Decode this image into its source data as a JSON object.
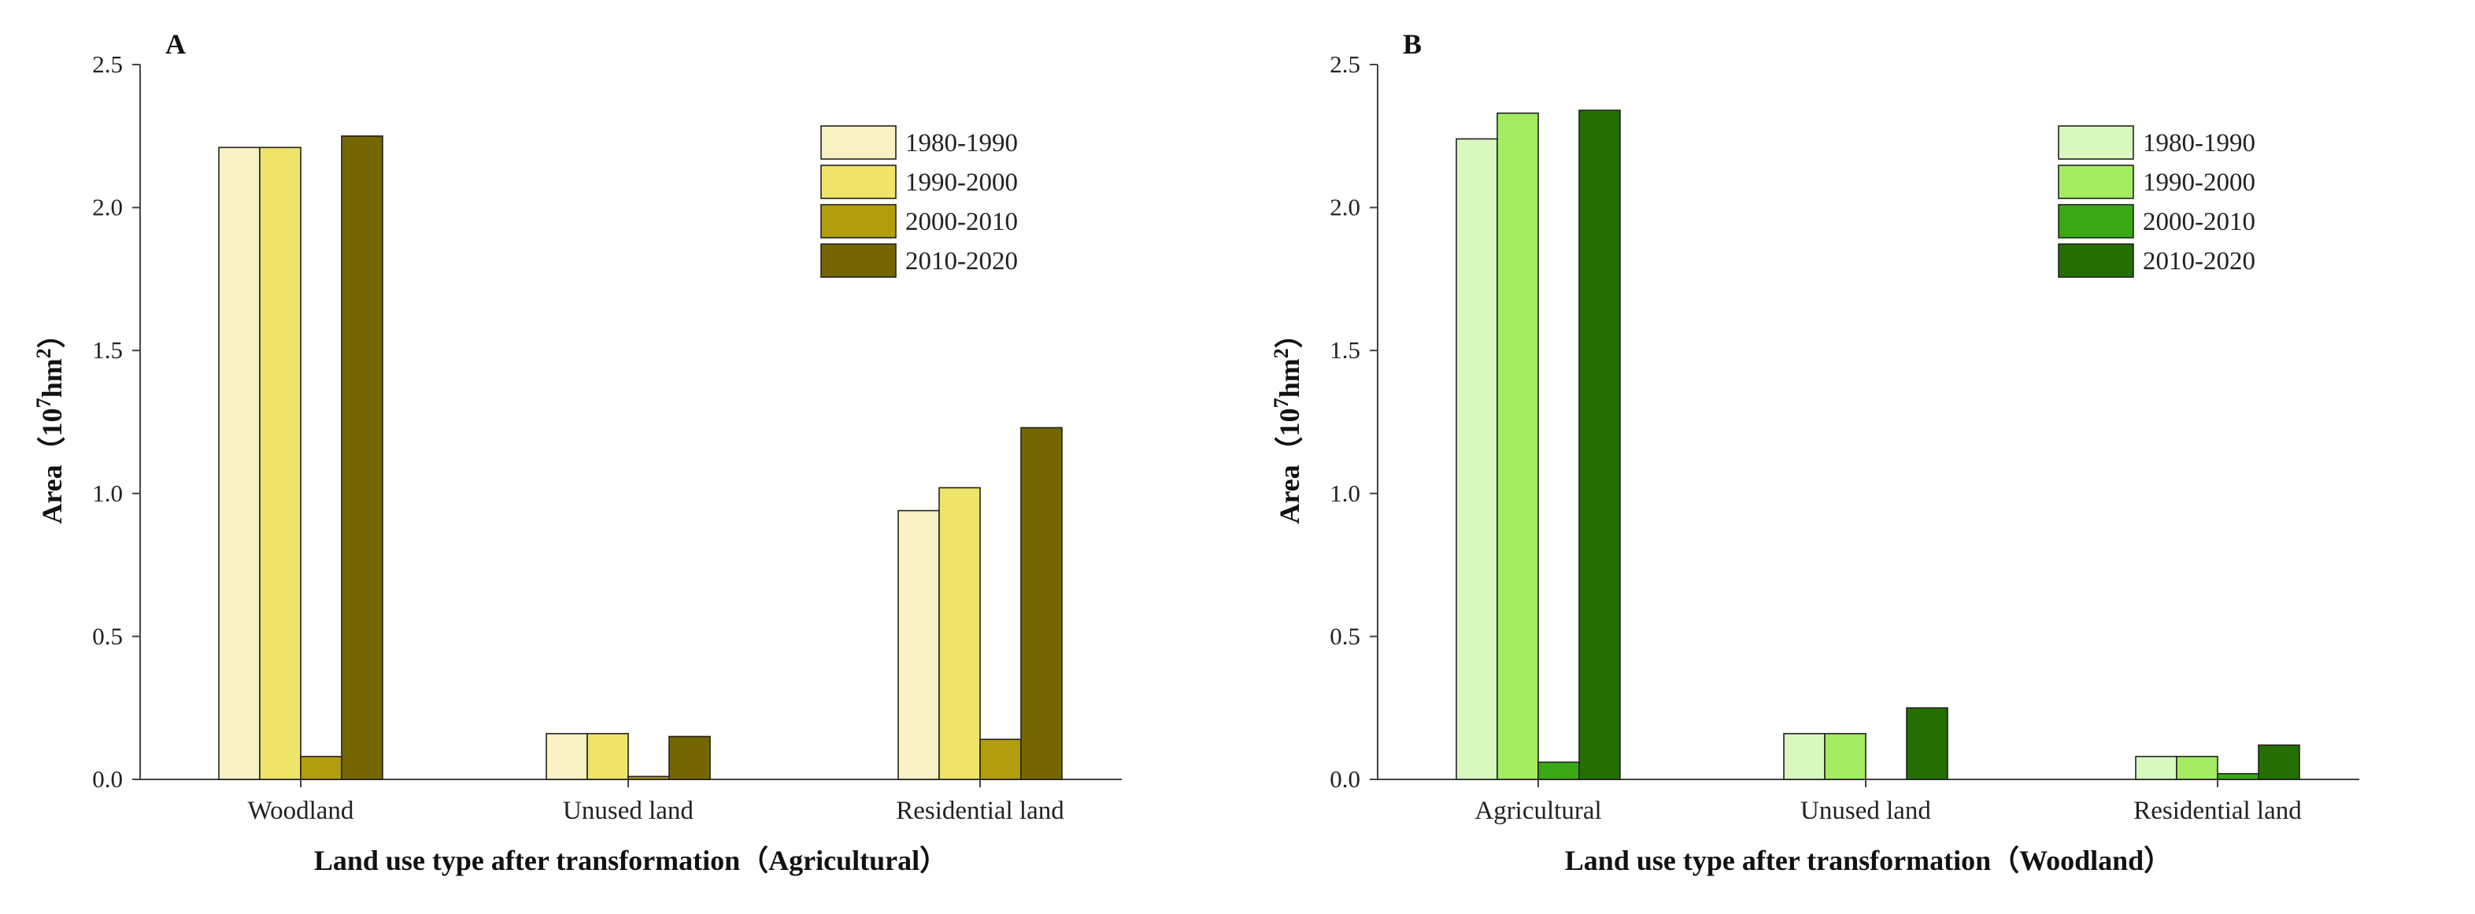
{
  "chart_data": [
    {
      "type": "bar",
      "panel_label": "A",
      "categories": [
        "Woodland",
        "Unused land",
        "Residential land"
      ],
      "series": [
        {
          "name": "1980-1990",
          "color": "#f7f1c3",
          "values": [
            2.21,
            0.16,
            0.94
          ]
        },
        {
          "name": "1990-2000",
          "color": "#efe46a",
          "values": [
            2.21,
            0.16,
            1.02
          ]
        },
        {
          "name": "2000-2010",
          "color": "#b19d0d",
          "values": [
            0.08,
            0.01,
            0.14
          ]
        },
        {
          "name": "2010-2020",
          "color": "#746700",
          "values": [
            2.25,
            0.15,
            1.23
          ]
        }
      ],
      "xlabel": "Land use type after transformation（Agricultural）",
      "ylabel_prefix": "Area（10",
      "ylabel_exp1": "7",
      "ylabel_mid": "hm",
      "ylabel_exp2": "2",
      "ylabel_suffix": "）",
      "ylim": [
        0,
        2.5
      ],
      "yticks": [
        "0.0",
        "0.5",
        "1.0",
        "1.5",
        "2.0",
        "2.5"
      ],
      "legend_position": "top-right"
    },
    {
      "type": "bar",
      "panel_label": "B",
      "categories": [
        "Agricultural",
        "Unused land",
        "Residential land"
      ],
      "series": [
        {
          "name": "1980-1990",
          "color": "#d9f8c0",
          "values": [
            2.24,
            0.16,
            0.08
          ]
        },
        {
          "name": "1990-2000",
          "color": "#a4ec62",
          "values": [
            2.33,
            0.16,
            0.08
          ]
        },
        {
          "name": "2000-2010",
          "color": "#3aa914",
          "values": [
            0.06,
            0.0,
            0.02
          ]
        },
        {
          "name": "2010-2020",
          "color": "#246e02",
          "values": [
            2.34,
            0.25,
            0.12
          ]
        }
      ],
      "xlabel": "Land use type after transformation（Woodland）",
      "ylabel_prefix": "Area（10",
      "ylabel_exp1": "7",
      "ylabel_mid": "hm",
      "ylabel_exp2": "2",
      "ylabel_suffix": "）",
      "ylim": [
        0,
        2.5
      ],
      "yticks": [
        "0.0",
        "0.5",
        "1.0",
        "1.5",
        "2.0",
        "2.5"
      ],
      "legend_position": "top-right"
    }
  ]
}
